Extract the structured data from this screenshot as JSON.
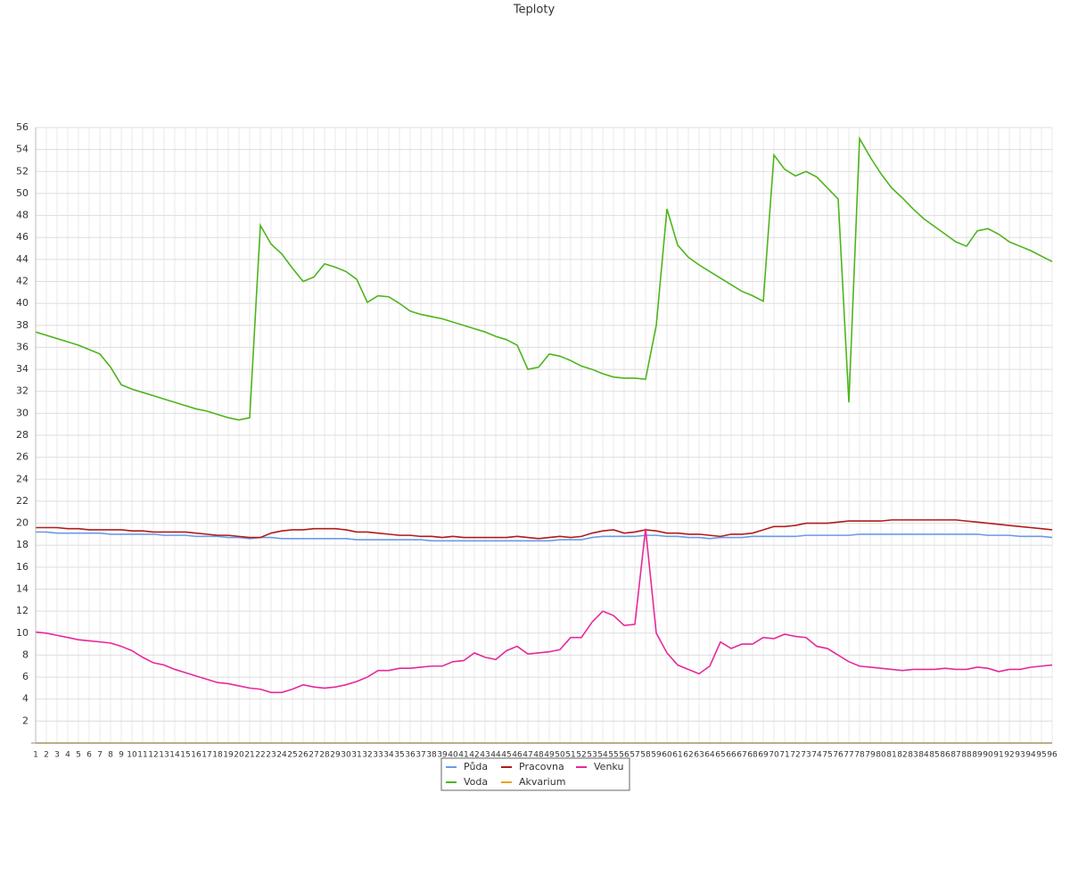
{
  "chart_data": {
    "type": "line",
    "title": "Teploty",
    "categories": [
      1,
      2,
      3,
      4,
      5,
      6,
      7,
      8,
      9,
      10,
      11,
      12,
      13,
      14,
      15,
      16,
      17,
      18,
      19,
      20,
      21,
      22,
      23,
      24,
      25,
      26,
      27,
      28,
      29,
      30,
      31,
      32,
      33,
      34,
      35,
      36,
      37,
      38,
      39,
      40,
      41,
      42,
      43,
      44,
      45,
      46,
      47,
      48,
      49,
      50,
      51,
      52,
      53,
      54,
      55,
      56,
      57,
      58,
      59,
      60,
      61,
      62,
      63,
      64,
      65,
      66,
      67,
      68,
      69,
      70,
      71,
      72,
      73,
      74,
      75,
      76,
      77,
      78,
      79,
      80,
      81,
      82,
      83,
      84,
      85,
      86,
      87,
      88,
      89,
      90,
      91,
      92,
      93,
      94,
      95,
      96
    ],
    "ylim": [
      0,
      56
    ],
    "yticks": [
      2,
      4,
      6,
      8,
      10,
      12,
      14,
      16,
      18,
      20,
      22,
      24,
      26,
      28,
      30,
      32,
      34,
      36,
      38,
      40,
      42,
      44,
      46,
      48,
      50,
      52,
      54,
      56
    ],
    "grid": true,
    "series": [
      {
        "name": "Půda",
        "color": "#6a9be6",
        "values": [
          19.2,
          19.2,
          19.1,
          19.1,
          19.1,
          19.1,
          19.1,
          19.0,
          19.0,
          19.0,
          19.0,
          19.0,
          18.9,
          18.9,
          18.9,
          18.8,
          18.8,
          18.8,
          18.7,
          18.7,
          18.6,
          18.7,
          18.7,
          18.6,
          18.6,
          18.6,
          18.6,
          18.6,
          18.6,
          18.6,
          18.5,
          18.5,
          18.5,
          18.5,
          18.5,
          18.5,
          18.5,
          18.4,
          18.4,
          18.4,
          18.4,
          18.4,
          18.4,
          18.4,
          18.4,
          18.4,
          18.4,
          18.4,
          18.4,
          18.5,
          18.5,
          18.5,
          18.7,
          18.8,
          18.8,
          18.8,
          18.8,
          18.9,
          18.9,
          18.8,
          18.8,
          18.7,
          18.7,
          18.6,
          18.7,
          18.7,
          18.7,
          18.8,
          18.8,
          18.8,
          18.8,
          18.8,
          18.9,
          18.9,
          18.9,
          18.9,
          18.9,
          19.0,
          19.0,
          19.0,
          19.0,
          19.0,
          19.0,
          19.0,
          19.0,
          19.0,
          19.0,
          19.0,
          19.0,
          18.9,
          18.9,
          18.9,
          18.8,
          18.8,
          18.8,
          18.7
        ]
      },
      {
        "name": "Pracovna",
        "color": "#b01c1c",
        "values": [
          19.6,
          19.6,
          19.6,
          19.5,
          19.5,
          19.4,
          19.4,
          19.4,
          19.4,
          19.3,
          19.3,
          19.2,
          19.2,
          19.2,
          19.2,
          19.1,
          19.0,
          18.9,
          18.9,
          18.8,
          18.7,
          18.7,
          19.1,
          19.3,
          19.4,
          19.4,
          19.5,
          19.5,
          19.5,
          19.4,
          19.2,
          19.2,
          19.1,
          19.0,
          18.9,
          18.9,
          18.8,
          18.8,
          18.7,
          18.8,
          18.7,
          18.7,
          18.7,
          18.7,
          18.7,
          18.8,
          18.7,
          18.6,
          18.7,
          18.8,
          18.7,
          18.8,
          19.1,
          19.3,
          19.4,
          19.1,
          19.2,
          19.4,
          19.3,
          19.1,
          19.1,
          19.0,
          19.0,
          18.9,
          18.8,
          19.0,
          19.0,
          19.1,
          19.4,
          19.7,
          19.7,
          19.8,
          20.0,
          20.0,
          20.0,
          20.1,
          20.2,
          20.2,
          20.2,
          20.2,
          20.3,
          20.3,
          20.3,
          20.3,
          20.3,
          20.3,
          20.3,
          20.2,
          20.1,
          20.0,
          19.9,
          19.8,
          19.7,
          19.6,
          19.5,
          19.4
        ]
      },
      {
        "name": "Venku",
        "color": "#e8289b",
        "values": [
          10.1,
          10.0,
          9.8,
          9.6,
          9.4,
          9.3,
          9.2,
          9.1,
          8.8,
          8.4,
          7.8,
          7.3,
          7.1,
          6.7,
          6.4,
          6.1,
          5.8,
          5.5,
          5.4,
          5.2,
          5.0,
          4.9,
          4.6,
          4.6,
          4.9,
          5.3,
          5.1,
          5.0,
          5.1,
          5.3,
          5.6,
          6.0,
          6.6,
          6.6,
          6.8,
          6.8,
          6.9,
          7.0,
          7.0,
          7.4,
          7.5,
          8.2,
          7.8,
          7.6,
          8.4,
          8.8,
          8.1,
          8.2,
          8.3,
          8.5,
          9.6,
          9.6,
          11.0,
          12.0,
          11.6,
          10.7,
          10.8,
          19.5,
          10.0,
          8.2,
          7.1,
          6.7,
          6.3,
          7.0,
          9.2,
          8.6,
          9.0,
          9.0,
          9.6,
          9.5,
          9.9,
          9.7,
          9.6,
          8.8,
          8.6,
          8.0,
          7.4,
          7.0,
          6.9,
          6.8,
          6.7,
          6.6,
          6.7,
          6.7,
          6.7,
          6.8,
          6.7,
          6.7,
          6.9,
          6.8,
          6.5,
          6.7,
          6.7,
          6.9,
          7.0,
          7.1
        ]
      },
      {
        "name": "Voda",
        "color": "#4db51c",
        "values": [
          37.4,
          37.1,
          36.8,
          36.5,
          36.2,
          35.8,
          35.4,
          34.2,
          32.6,
          32.2,
          31.9,
          31.6,
          31.3,
          31.0,
          30.7,
          30.4,
          30.2,
          29.9,
          29.6,
          29.4,
          29.6,
          47.1,
          45.4,
          44.5,
          43.2,
          42,
          42.4,
          43.6,
          43.3,
          42.9,
          42.2,
          40.1,
          40.7,
          40.6,
          40,
          39.3,
          39,
          38.8,
          38.6,
          38.3,
          38,
          37.7,
          37.4,
          37,
          36.7,
          36.2,
          34,
          34.2,
          35.4,
          35.2,
          34.8,
          34.3,
          34,
          33.6,
          33.3,
          33.2,
          33.2,
          33.1,
          38,
          48.6,
          45.3,
          44.2,
          43.5,
          42.9,
          42.3,
          41.7,
          41.1,
          40.7,
          40.2,
          53.5,
          52.2,
          51.6,
          52,
          51.5,
          50.5,
          49.5,
          31,
          55,
          53.3,
          51.8,
          50.5,
          49.6,
          48.6,
          47.7,
          47,
          46.3,
          45.6,
          45.2,
          46.6,
          46.8,
          46.3,
          45.6,
          45.2,
          44.8,
          44.3,
          43.8
        ]
      },
      {
        "name": "Akvarium",
        "color": "#e8a31a",
        "values": [
          0,
          0,
          0,
          0,
          0,
          0,
          0,
          0,
          0,
          0,
          0,
          0,
          0,
          0,
          0,
          0,
          0,
          0,
          0,
          0,
          0,
          0,
          0,
          0,
          0,
          0,
          0,
          0,
          0,
          0,
          0,
          0,
          0,
          0,
          0,
          0,
          0,
          0,
          0,
          0,
          0,
          0,
          0,
          0,
          0,
          0,
          0,
          0,
          0,
          0,
          0,
          0,
          0,
          0,
          0,
          0,
          0,
          0,
          0,
          0,
          0,
          0,
          0,
          0,
          0,
          0,
          0,
          0,
          0,
          0,
          0,
          0,
          0,
          0,
          0,
          0,
          0,
          0,
          0,
          0,
          0,
          0,
          0,
          0,
          0,
          0,
          0,
          0,
          0,
          0,
          0,
          0,
          0,
          0,
          0,
          0
        ]
      }
    ]
  }
}
